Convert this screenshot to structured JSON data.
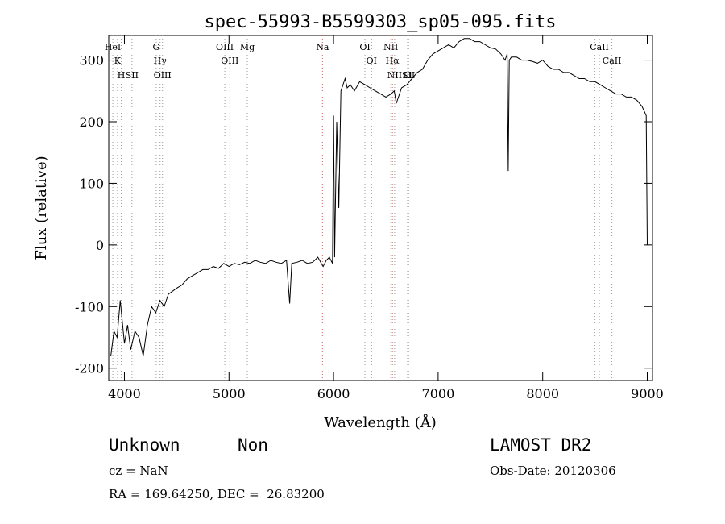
{
  "chart_data": {
    "type": "line",
    "title": "spec-55993-B5599303_sp05-095.fits",
    "xlabel": "Wavelength (Å)",
    "ylabel": "Flux (relative)",
    "xlim": [
      3850,
      9050
    ],
    "ylim": [
      -220,
      340
    ],
    "xticks": [
      4000,
      5000,
      6000,
      7000,
      8000,
      9000
    ],
    "yticks": [
      -200,
      -100,
      0,
      100,
      200,
      300
    ],
    "grid": false,
    "legend": "none",
    "line_color": "#000000",
    "series": [
      {
        "x": [
          3870,
          3900,
          3930,
          3960,
          4000,
          4030,
          4060,
          4100,
          4140,
          4180,
          4220,
          4260,
          4300,
          4340,
          4380,
          4420,
          4460,
          4500,
          4550,
          4600,
          4650,
          4700,
          4750,
          4800,
          4850,
          4900,
          4950,
          5000,
          5050,
          5100,
          5150,
          5200,
          5250,
          5300,
          5350,
          5400,
          5450,
          5500,
          5550,
          5580,
          5600,
          5650,
          5700,
          5750,
          5800,
          5850,
          5900,
          5930,
          5960,
          5990,
          6000,
          6010,
          6030,
          6050,
          6070,
          6090,
          6110,
          6130,
          6160,
          6200,
          6250,
          6300,
          6350,
          6400,
          6450,
          6500,
          6550,
          6580,
          6600,
          6650,
          6700,
          6750,
          6800,
          6850,
          6900,
          6950,
          7000,
          7050,
          7100,
          7150,
          7200,
          7250,
          7300,
          7350,
          7400,
          7450,
          7500,
          7550,
          7600,
          7640,
          7660,
          7670,
          7680,
          7700,
          7750,
          7800,
          7850,
          7900,
          7950,
          8000,
          8050,
          8100,
          8150,
          8200,
          8250,
          8300,
          8350,
          8400,
          8450,
          8500,
          8550,
          8600,
          8650,
          8700,
          8750,
          8800,
          8850,
          8900,
          8950,
          8990,
          9000
        ],
        "y": [
          -180,
          -140,
          -150,
          -90,
          -160,
          -130,
          -170,
          -140,
          -150,
          -180,
          -130,
          -100,
          -110,
          -90,
          -100,
          -80,
          -75,
          -70,
          -65,
          -55,
          -50,
          -45,
          -40,
          -40,
          -35,
          -38,
          -30,
          -35,
          -30,
          -32,
          -28,
          -30,
          -25,
          -28,
          -30,
          -25,
          -28,
          -30,
          -25,
          -95,
          -30,
          -28,
          -25,
          -30,
          -28,
          -20,
          -35,
          -25,
          -20,
          -30,
          210,
          -20,
          200,
          60,
          250,
          260,
          270,
          255,
          260,
          250,
          265,
          260,
          255,
          250,
          245,
          240,
          245,
          250,
          230,
          255,
          260,
          270,
          280,
          285,
          300,
          310,
          315,
          320,
          325,
          320,
          330,
          335,
          335,
          330,
          330,
          325,
          320,
          318,
          310,
          300,
          310,
          120,
          300,
          305,
          305,
          300,
          300,
          298,
          295,
          300,
          290,
          285,
          285,
          280,
          280,
          275,
          270,
          270,
          265,
          265,
          260,
          255,
          250,
          245,
          245,
          240,
          240,
          235,
          225,
          210,
          0
        ]
      }
    ],
    "lines": [
      {
        "wl": 3889,
        "color": "#999999",
        "labels": [
          "HeI"
        ]
      },
      {
        "wl": 3934,
        "color": "#999999",
        "labels": [
          "K"
        ]
      },
      {
        "wl": 3970,
        "color": "#999999",
        "labels": [
          "H"
        ]
      },
      {
        "wl": 4072,
        "color": "#999999",
        "labels": [
          "SII"
        ]
      },
      {
        "wl": 4304,
        "color": "#999999",
        "labels": [
          "G"
        ]
      },
      {
        "wl": 4341,
        "color": "#999999",
        "labels": [
          "Hγ"
        ]
      },
      {
        "wl": 4364,
        "color": "#999999",
        "labels": [
          "OIII"
        ]
      },
      {
        "wl": 4960,
        "color": "#999999",
        "labels": [
          "OIII"
        ]
      },
      {
        "wl": 5008,
        "color": "#999999",
        "labels": [
          "OIII"
        ]
      },
      {
        "wl": 5175,
        "color": "#999999",
        "labels": [
          "Mg"
        ]
      },
      {
        "wl": 5894,
        "color": "#cc6666",
        "labels": [
          "Na"
        ]
      },
      {
        "wl": 6300,
        "color": "#999999",
        "labels": [
          "OI"
        ]
      },
      {
        "wl": 6364,
        "color": "#999999",
        "labels": [
          "OI"
        ]
      },
      {
        "wl": 6548,
        "color": "#999999",
        "labels": [
          "NII"
        ]
      },
      {
        "wl": 6563,
        "color": "#cc6666",
        "labels": [
          "Hα"
        ]
      },
      {
        "wl": 6584,
        "color": "#999999",
        "labels": [
          "NII"
        ]
      },
      {
        "wl": 6717,
        "color": "#999999",
        "labels": [
          "SII"
        ]
      },
      {
        "wl": 6708,
        "color": "#999999",
        "labels": [
          "Li"
        ]
      },
      {
        "wl": 8498,
        "color": "#999999",
        "labels": []
      },
      {
        "wl": 8542,
        "color": "#999999",
        "labels": [
          "CaII"
        ]
      },
      {
        "wl": 8662,
        "color": "#999999",
        "labels": [
          "CaII"
        ]
      }
    ]
  },
  "footer": {
    "class_label": "Unknown",
    "subclass_label": "Non",
    "survey": "LAMOST DR2",
    "cz": "cz = NaN",
    "obs_date": "Obs-Date: 20120306",
    "coords": "RA = 169.64250, DEC =  26.83200"
  }
}
